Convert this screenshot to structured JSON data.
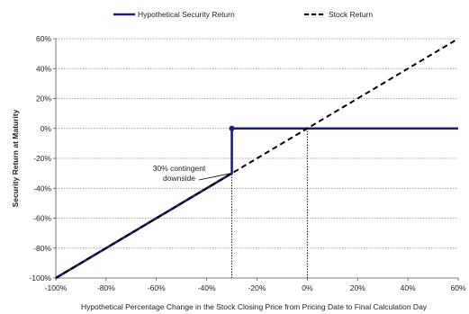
{
  "chart_data": {
    "type": "line",
    "xlabel": "Hypothetical Percentage Change in the Stock Closing Price from Pricing Date to Final Calculation Day",
    "ylabel": "Security Return at Maturity",
    "xlim": [
      -100,
      60
    ],
    "ylim": [
      -100,
      60
    ],
    "x_ticks": [
      -100,
      -80,
      -60,
      -40,
      -20,
      0,
      20,
      40,
      60
    ],
    "y_ticks": [
      -100,
      -80,
      -60,
      -40,
      -20,
      0,
      20,
      40,
      60
    ],
    "x_tick_labels": [
      "-100%",
      "-80%",
      "-60%",
      "-40%",
      "-20%",
      "0%",
      "20%",
      "40%",
      "60%"
    ],
    "y_tick_labels": [
      "-100%",
      "-80%",
      "-60%",
      "-40%",
      "-20%",
      "0%",
      "20%",
      "40%",
      "60%"
    ],
    "grid": "horizontal dotted",
    "legend_position": "top",
    "series": [
      {
        "name": "Hypothetical Security Return",
        "style": "solid",
        "color": "#1f1f7a",
        "points": [
          [
            -100,
            -100
          ],
          [
            -30,
            -30
          ],
          [
            -30,
            0
          ],
          [
            60,
            0
          ]
        ],
        "marker_point": [
          -30,
          0
        ]
      },
      {
        "name": "Stock Return",
        "style": "dashed",
        "color": "#000000",
        "points": [
          [
            -100,
            -100
          ],
          [
            60,
            60
          ]
        ]
      }
    ],
    "reference_lines": [
      {
        "x": -30,
        "y_from": -100,
        "y_to": 0,
        "style": "dotted"
      },
      {
        "x": 0,
        "y_from": -100,
        "y_to": 0,
        "style": "dotted"
      }
    ],
    "annotation": {
      "lines": [
        "30% contingent",
        "downside"
      ],
      "points_to": [
        -30,
        -30
      ]
    }
  }
}
